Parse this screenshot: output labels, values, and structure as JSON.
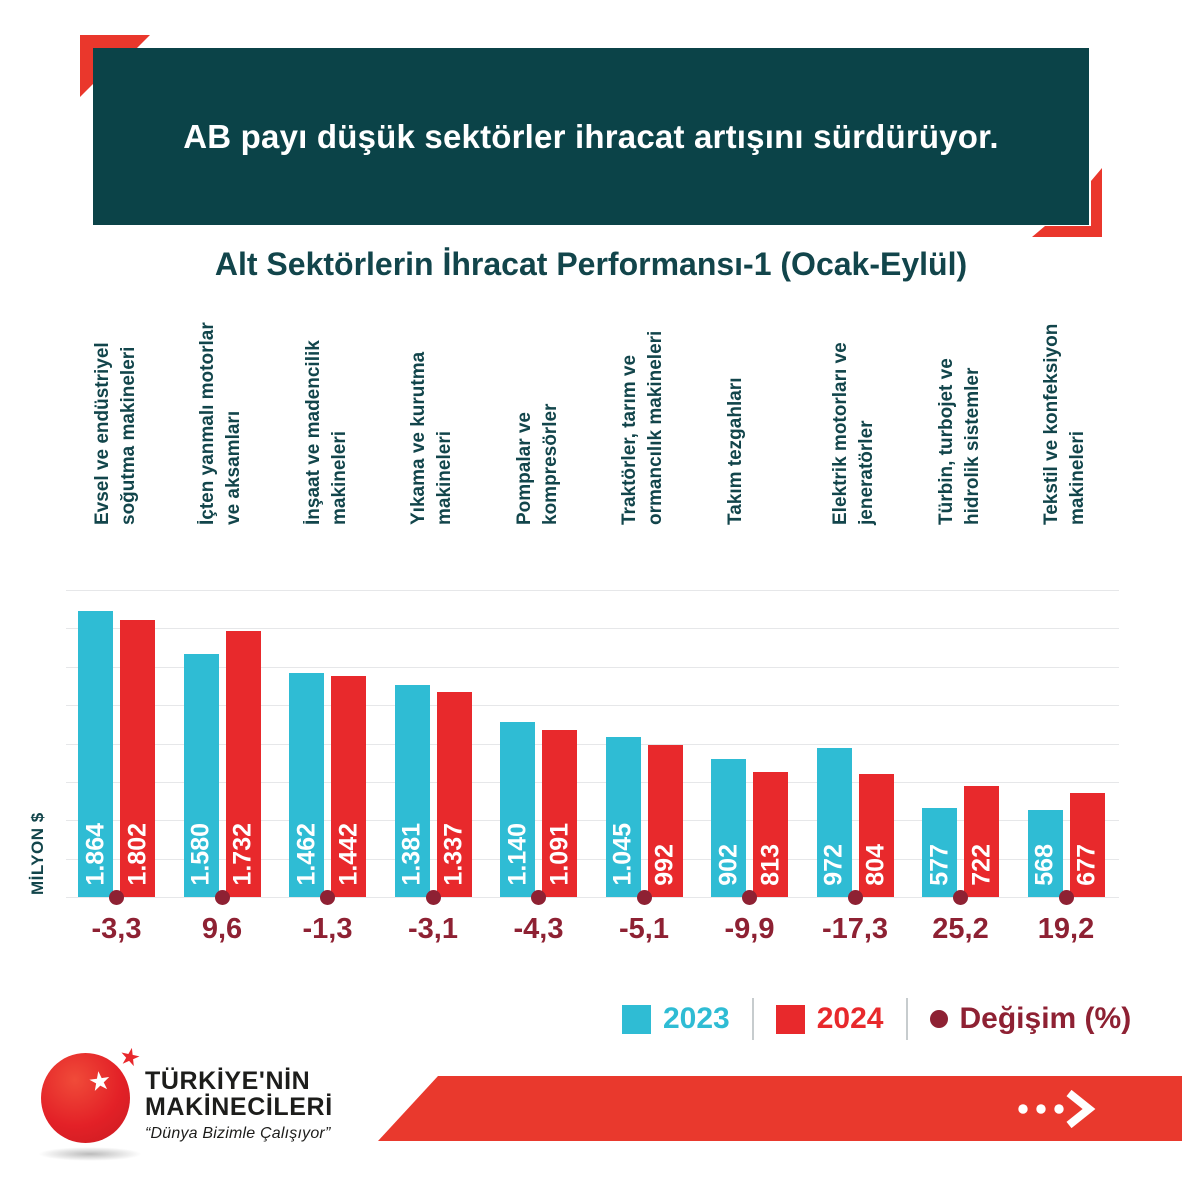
{
  "header": {
    "banner_text": "AB payı düşük sektörler ihracat artışını sürdürüyor."
  },
  "subtitle": "Alt Sektörlerin İhracat Performansı-1 (Ocak-Eylül)",
  "chart_data": {
    "type": "bar",
    "title": "Alt Sektörlerin İhracat Performansı-1 (Ocak-Eylül)",
    "ylabel": "MİLYON $",
    "ylim": [
      0,
      2000
    ],
    "gridline_step": 250,
    "grid": true,
    "legend_position": "bottom-right",
    "categories": [
      "Evsel ve endüstriyel\nsoğutma makineleri",
      "İçten yanmalı motorlar\nve aksamları",
      "İnşaat ve madencilik\nmakineleri",
      "Yıkama ve kurutma\nmakineleri",
      "Pompalar ve\nkompresörler",
      "Traktörler, tarım ve\normancılık makineleri",
      "Takım tezgahları",
      "Elektrik motorları ve\njeneratörler",
      "Türbin, turbojet ve\nhidrolik sistemler",
      "Tekstil ve konfeksiyon\nmakineleri"
    ],
    "series": [
      {
        "name": "2023",
        "color": "#2fbcd4",
        "values": [
          1864,
          1580,
          1462,
          1381,
          1140,
          1045,
          902,
          972,
          577,
          568
        ],
        "labels": [
          "1.864",
          "1.580",
          "1.462",
          "1.381",
          "1.140",
          "1.045",
          "902",
          "972",
          "577",
          "568"
        ]
      },
      {
        "name": "2024",
        "color": "#e8292c",
        "values": [
          1802,
          1732,
          1442,
          1337,
          1091,
          992,
          813,
          804,
          722,
          677
        ],
        "labels": [
          "1.802",
          "1.732",
          "1.442",
          "1.337",
          "1.091",
          "992",
          "813",
          "804",
          "722",
          "677"
        ]
      }
    ],
    "change_series": {
      "name": "Değişim (%)",
      "color": "#8e2133",
      "values": [
        -3.3,
        9.6,
        -1.3,
        -3.1,
        -4.3,
        -5.1,
        -9.9,
        -17.3,
        25.2,
        19.2
      ],
      "labels": [
        "-3,3",
        "9,6",
        "-1,3",
        "-3,1",
        "-4,3",
        "-5,1",
        "-9,9",
        "-17,3",
        "25,2",
        "19,2"
      ]
    }
  },
  "legend": {
    "items": [
      {
        "label": "2023",
        "color": "#2fbcd4",
        "swatch": "square"
      },
      {
        "label": "2024",
        "color": "#e8292c",
        "swatch": "square"
      },
      {
        "label": "Değişim (%)",
        "color": "#8e2133",
        "swatch": "dot"
      }
    ]
  },
  "footer": {
    "logo": {
      "line1": "TÜRKİYE'NİN",
      "line2": "MAKİNECİLERİ",
      "tagline": "“Dünya Bizimle Çalışıyor”",
      "star_glyph": "★"
    },
    "banner": {
      "arrow_icon": "ellipsis-chevron-right"
    }
  },
  "colors": {
    "teal": "#0b4348",
    "cyan": "#2fbcd4",
    "red": "#e8292c",
    "dark_red": "#8e2133",
    "banner_red": "#e9392d",
    "bracket_red": "#ea372c",
    "gridline": "#e6e7e9"
  }
}
